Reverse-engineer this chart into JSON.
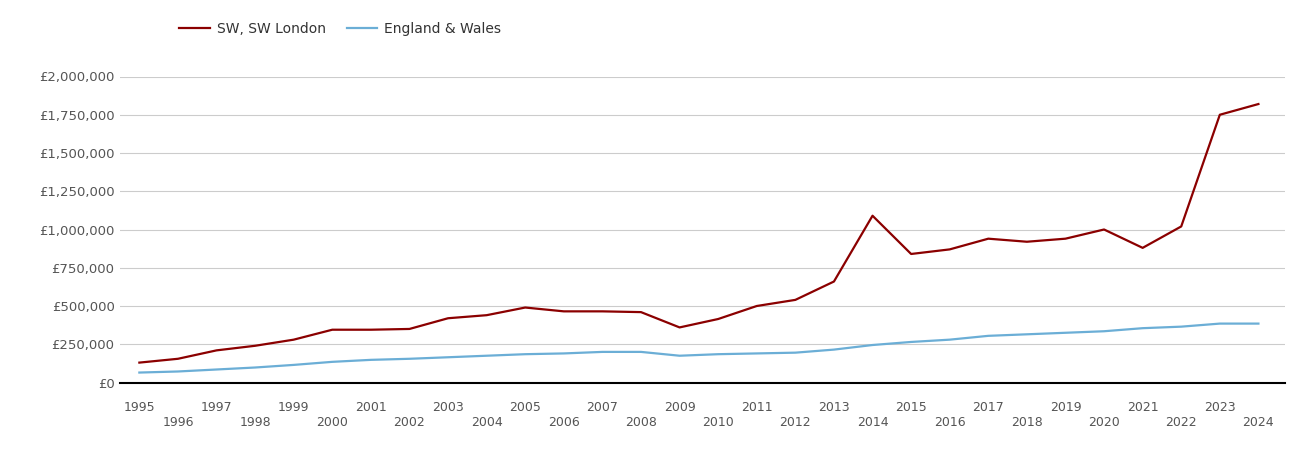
{
  "sw_years": [
    1995,
    1996,
    1997,
    1998,
    1999,
    2000,
    2001,
    2002,
    2003,
    2004,
    2005,
    2006,
    2007,
    2008,
    2009,
    2010,
    2011,
    2012,
    2013,
    2014,
    2015,
    2016,
    2017,
    2018,
    2019,
    2020,
    2021,
    2022,
    2023,
    2024
  ],
  "sw_values": [
    130000,
    155000,
    210000,
    240000,
    280000,
    345000,
    345000,
    350000,
    420000,
    440000,
    490000,
    465000,
    465000,
    460000,
    360000,
    415000,
    500000,
    540000,
    660000,
    1090000,
    840000,
    870000,
    940000,
    920000,
    940000,
    1000000,
    880000,
    1020000,
    1750000,
    1820000
  ],
  "ew_years": [
    1995,
    1996,
    1997,
    1998,
    1999,
    2000,
    2001,
    2002,
    2003,
    2004,
    2005,
    2006,
    2007,
    2008,
    2009,
    2010,
    2011,
    2012,
    2013,
    2014,
    2015,
    2016,
    2017,
    2018,
    2019,
    2020,
    2021,
    2022,
    2023,
    2024
  ],
  "ew_values": [
    65000,
    72000,
    85000,
    98000,
    115000,
    135000,
    148000,
    155000,
    165000,
    175000,
    185000,
    190000,
    200000,
    200000,
    175000,
    185000,
    190000,
    195000,
    215000,
    245000,
    265000,
    280000,
    305000,
    315000,
    325000,
    335000,
    355000,
    365000,
    385000,
    385000
  ],
  "sw_color": "#8B0000",
  "ew_color": "#6baed6",
  "sw_label": "SW, SW London",
  "ew_label": "England & Wales",
  "ylim": [
    0,
    2000000
  ],
  "yticks": [
    0,
    250000,
    500000,
    750000,
    1000000,
    1250000,
    1500000,
    1750000,
    2000000
  ],
  "ytick_labels": [
    "£0",
    "£250,000",
    "£500,000",
    "£750,000",
    "£1,000,000",
    "£1,250,000",
    "£1,500,000",
    "£1,750,000",
    "£2,000,000"
  ],
  "xticks_top": [
    1995,
    1997,
    1999,
    2001,
    2003,
    2005,
    2007,
    2009,
    2011,
    2013,
    2015,
    2017,
    2019,
    2021,
    2023
  ],
  "xticks_bottom": [
    1996,
    1998,
    2000,
    2002,
    2004,
    2006,
    2008,
    2010,
    2012,
    2014,
    2016,
    2018,
    2020,
    2022,
    2024
  ],
  "xlim": [
    1994.5,
    2024.7
  ],
  "line_width": 1.6,
  "bg_color": "#ffffff",
  "grid_color": "#cccccc",
  "tick_color": "#555555",
  "spine_color": "#000000"
}
